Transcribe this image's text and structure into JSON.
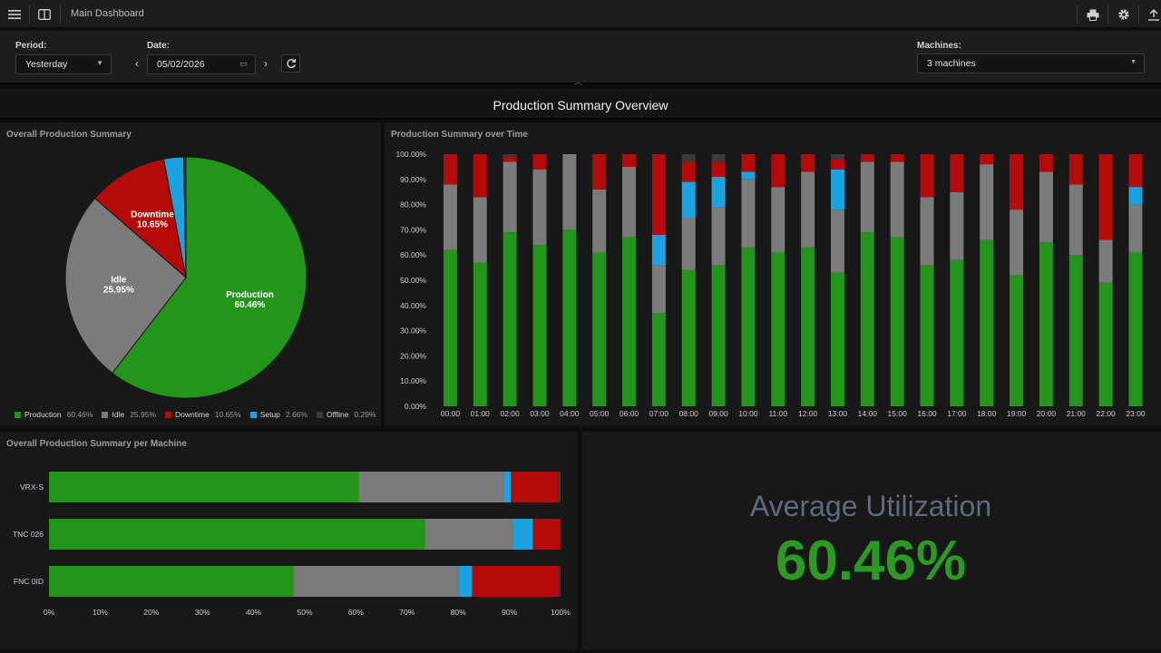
{
  "topbar": {
    "title": "Main Dashboard",
    "menu_icon": "hamburger-menu-icon",
    "layout_icon": "panel-layout-icon",
    "print_icon": "printer-icon",
    "settings_icon": "gear-icon",
    "export_icon": "upload-icon"
  },
  "filters": {
    "period_label": "Period:",
    "period_value": "Yesterday",
    "date_label": "Date:",
    "date_value": "05/02/2026",
    "machines_label": "Machines:",
    "machines_value": "3 machines",
    "prev_icon": "chevron-left-icon",
    "next_icon": "chevron-right-icon",
    "refresh_icon": "refresh-icon",
    "calendar_icon": "calendar-icon"
  },
  "section_title": "Production Summary Overview",
  "colors": {
    "production": "#23951a",
    "idle": "#7b7b7b",
    "downtime": "#b40a0a",
    "setup": "#1aa3de",
    "offline": "#3a3a3a"
  },
  "panels": {
    "pie_title": "Overall Production Summary",
    "time_title": "Production Summary over Time",
    "machine_title": "Overall Production Summary per Machine"
  },
  "chart_data": [
    {
      "type": "pie",
      "title": "Overall Production Summary",
      "categories": [
        "Production",
        "Idle",
        "Downtime",
        "Setup",
        "Offline"
      ],
      "values": [
        60.46,
        25.95,
        10.65,
        2.66,
        0.29
      ],
      "value_labels": [
        "60.46%",
        "25.95%",
        "10.65%",
        "2.66%",
        "0.29%"
      ],
      "legend": "bottom"
    },
    {
      "type": "bar",
      "stacked": true,
      "title": "Production Summary over Time",
      "categories": [
        "00:00",
        "01:00",
        "02:00",
        "03:00",
        "04:00",
        "05:00",
        "06:00",
        "07:00",
        "08:00",
        "09:00",
        "10:00",
        "11:00",
        "12:00",
        "13:00",
        "14:00",
        "15:00",
        "16:00",
        "17:00",
        "18:00",
        "19:00",
        "20:00",
        "21:00",
        "22:00",
        "23:00"
      ],
      "y_ticks": [
        "0.00%",
        "10.00%",
        "20.00%",
        "30.00%",
        "40.00%",
        "50.00%",
        "60.00%",
        "70.00%",
        "80.00%",
        "90.00%",
        "100.00%"
      ],
      "ylim": [
        0,
        100
      ],
      "series": [
        {
          "name": "Production",
          "values": [
            62,
            57,
            69,
            64,
            70,
            61,
            67,
            37,
            54,
            56,
            63,
            61,
            63,
            53,
            69,
            67,
            56,
            58,
            66,
            52,
            65,
            60,
            49,
            61
          ]
        },
        {
          "name": "Idle",
          "values": [
            26,
            26,
            28,
            30,
            30,
            25,
            28,
            19,
            21,
            23,
            27,
            26,
            30,
            25,
            28,
            30,
            27,
            27,
            30,
            26,
            28,
            28,
            17,
            19
          ]
        },
        {
          "name": "Setup",
          "values": [
            0,
            0,
            0,
            0,
            0,
            0,
            0,
            12,
            14,
            12,
            3,
            0,
            0,
            16,
            0,
            0,
            0,
            0,
            0,
            0,
            0,
            0,
            0,
            7
          ]
        },
        {
          "name": "Downtime",
          "values": [
            12,
            17,
            2,
            6,
            0,
            14,
            5,
            32,
            8,
            6,
            7,
            13,
            7,
            4,
            3,
            3,
            17,
            15,
            4,
            22,
            7,
            12,
            34,
            13
          ]
        },
        {
          "name": "Offline",
          "values": [
            0,
            0,
            1,
            0,
            0,
            0,
            0,
            0,
            3,
            3,
            0,
            0,
            0,
            2,
            0,
            0,
            0,
            0,
            0,
            0,
            0,
            0,
            0,
            0
          ]
        }
      ],
      "grid": false
    },
    {
      "type": "bar",
      "orientation": "horizontal",
      "stacked": true,
      "title": "Overall Production Summary per Machine",
      "categories": [
        "VRX-S",
        "TNC 026",
        "FNC 0ID"
      ],
      "x_ticks": [
        "0%",
        "10%",
        "20%",
        "30%",
        "40%",
        "50%",
        "60%",
        "70%",
        "80%",
        "90%",
        "100%"
      ],
      "xlim": [
        0,
        100
      ],
      "series": [
        {
          "name": "Production",
          "values": [
            60.5,
            73.5,
            47.8
          ]
        },
        {
          "name": "Idle",
          "values": [
            28.5,
            17.2,
            32.3
          ]
        },
        {
          "name": "Setup",
          "values": [
            1.3,
            3.9,
            2.6
          ]
        },
        {
          "name": "Downtime",
          "values": [
            9.3,
            5.4,
            17.0
          ]
        },
        {
          "name": "Offline",
          "values": [
            0.4,
            0,
            0.3
          ]
        }
      ]
    }
  ],
  "utilization": {
    "label": "Average Utilization",
    "value": "60.46%"
  }
}
